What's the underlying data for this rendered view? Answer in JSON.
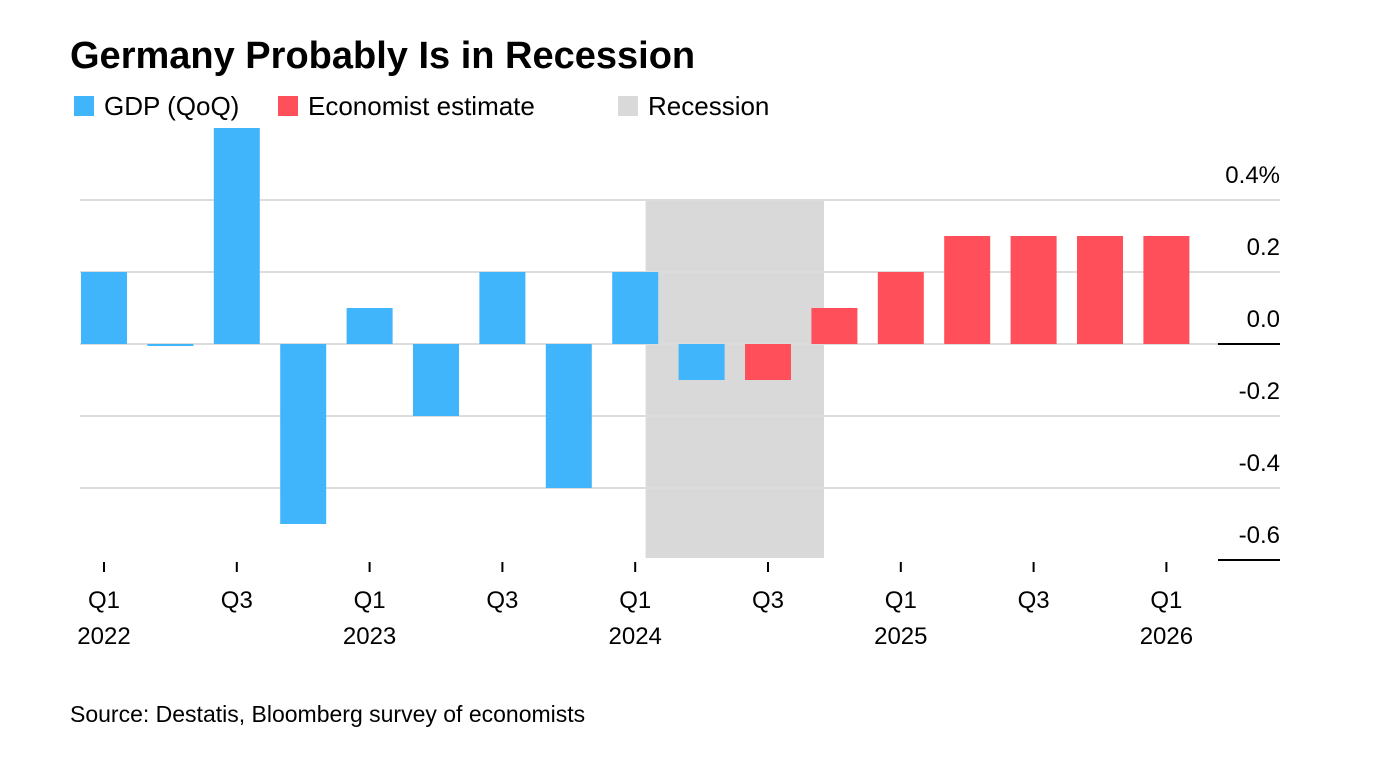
{
  "chart_data": {
    "type": "bar",
    "title": "Germany Probably Is in Recession",
    "source": "Source: Destatis, Bloomberg survey of economists",
    "categories": [
      [
        "Q1",
        "2022"
      ],
      null,
      [
        "Q3"
      ],
      null,
      [
        "Q1",
        "2023"
      ],
      null,
      [
        "Q3"
      ],
      null,
      [
        "Q1",
        "2024"
      ],
      null,
      [
        "Q3"
      ],
      null,
      [
        "Q1",
        "2025"
      ],
      null,
      [
        "Q3"
      ],
      null,
      [
        "Q1",
        "2026"
      ]
    ],
    "series": [
      {
        "name": "GDP (QoQ)",
        "color": "#40b5fb",
        "values": [
          0.2,
          0.0,
          0.6,
          -0.5,
          0.1,
          -0.2,
          0.2,
          -0.4,
          0.2,
          -0.1,
          null,
          null,
          null,
          null,
          null,
          null,
          null
        ]
      },
      {
        "name": "Economist estimate",
        "color": "#ff4f5a",
        "values": [
          null,
          null,
          null,
          null,
          null,
          null,
          null,
          null,
          null,
          null,
          -0.1,
          0.1,
          0.2,
          0.3,
          0.3,
          0.3,
          0.3
        ]
      }
    ],
    "recession": {
      "name": "Recession",
      "color": "#d9d9d9",
      "from": 9,
      "to": 10,
      "ylim": [
        -0.6,
        0.4
      ]
    },
    "ylim": [
      -0.6,
      0.6
    ],
    "yticks": [
      {
        "value": 0.4,
        "label": "0.4%"
      },
      0.2,
      {
        "value": 0,
        "label": "0.0"
      },
      -0.2,
      -0.4,
      -0.6
    ],
    "grid": true
  }
}
